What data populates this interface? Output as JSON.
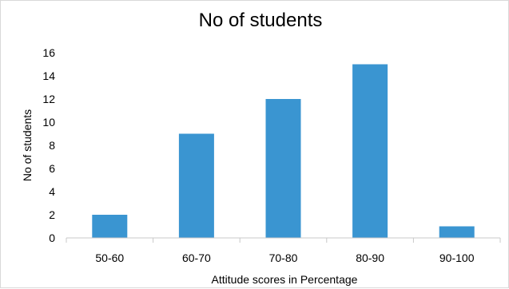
{
  "chart_data": {
    "type": "bar",
    "title": "No of students",
    "xlabel": "Attitude scores in Percentage",
    "ylabel": "No of students",
    "categories": [
      "50-60",
      "60-70",
      "70-80",
      "80-90",
      "90-100"
    ],
    "values": [
      2,
      9,
      12,
      15,
      1
    ],
    "ylim": [
      0,
      16
    ],
    "yticks": [
      0,
      2,
      4,
      6,
      8,
      10,
      12,
      14,
      16
    ],
    "grid": false,
    "legend": "none",
    "colors": {
      "bar": "#3a95d1",
      "axis": "#c8c8c8"
    }
  }
}
